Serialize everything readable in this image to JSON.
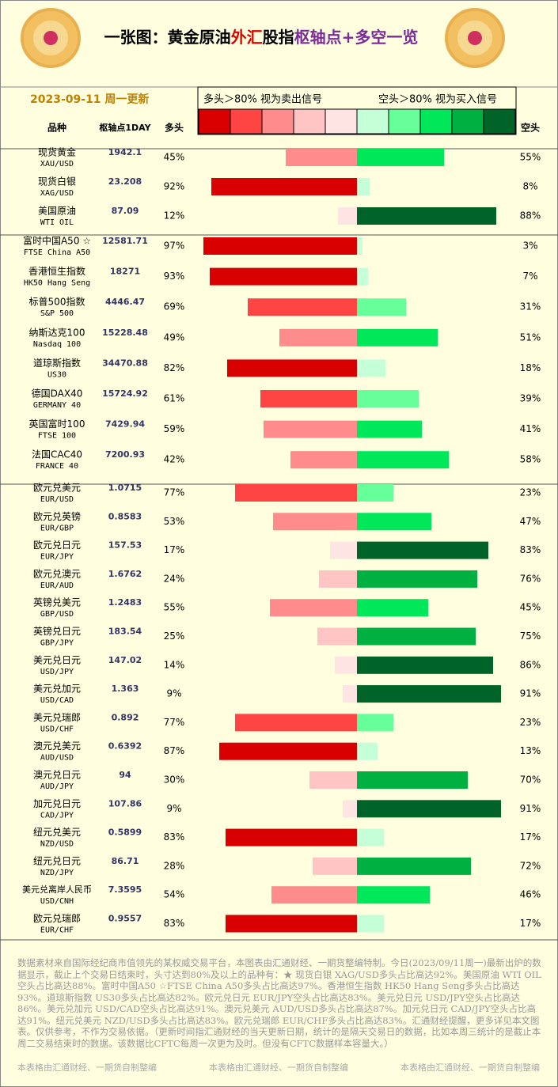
{
  "chart_data": {
    "type": "diverging-bar",
    "title_parts": [
      {
        "text": "一张图：黄金原油",
        "color": "#000000"
      },
      {
        "text": "外汇",
        "color": "#e00000"
      },
      {
        "text": "股指",
        "color": "#000000"
      },
      {
        "text": "枢轴点+多空一览",
        "color": "#7a2a9a"
      }
    ],
    "date": "2023-09-11 周一更新",
    "legend_texts": [
      "多头＞80% 视为卖出信号",
      "空头＞80% 视为买入信号"
    ],
    "legend_colors": [
      "#d80000",
      "#ff4444",
      "#ff8c8c",
      "#ffc4c4",
      "#ffe4e4",
      "#c4ffd8",
      "#66ff99",
      "#00e85a",
      "#00b040",
      "#006428"
    ],
    "headers": [
      "品种",
      "枢轴点1DAY",
      "多头",
      "空头"
    ],
    "categories": [
      "现货黄金",
      "现货白银",
      "美国原油",
      "富时中国A50 ☆",
      "香港恒生指数",
      "标普500指数",
      "纳斯达克100",
      "道琼斯指数",
      "德国DAX40",
      "英国富时100",
      "法国CAC40",
      "欧元兑美元",
      "欧元兑英镑",
      "欧元兑日元",
      "欧元兑澳元",
      "英镑兑美元",
      "英镑兑日元",
      "美元兑日元",
      "美元兑加元",
      "美元兑瑞郎",
      "澳元兑美元",
      "澳元兑日元",
      "加元兑日元",
      "纽元兑美元",
      "纽元兑日元",
      "美元兑离岸人民币",
      "欧元兑瑞郎"
    ],
    "codes": [
      "XAU/USD",
      "XAG/USD",
      "WTI OIL",
      "FTSE China A50",
      "HK50 Hang Seng",
      "S&P 500",
      "Nasdaq 100",
      "US30",
      "GERMANY 40",
      "FTSE 100",
      "FRANCE 40",
      "EUR/USD",
      "EUR/GBP",
      "EUR/JPY",
      "EUR/AUD",
      "GBP/USD",
      "GBP/JPY",
      "USD/JPY",
      "USD/CAD",
      "USD/CHF",
      "AUD/USD",
      "AUD/JPY",
      "CAD/JPY",
      "NZD/USD",
      "NZD/JPY",
      "USD/CNH",
      "EUR/CHF"
    ],
    "pivots": [
      1942.1,
      23.208,
      87.09,
      12581.71,
      18271,
      4446.47,
      15228.48,
      34470.88,
      15724.92,
      7429.94,
      7200.93,
      1.0715,
      0.8583,
      157.53,
      1.6762,
      1.2483,
      183.54,
      147.02,
      1.363,
      0.892,
      0.6392,
      94,
      107.86,
      0.5899,
      86.71,
      7.3595,
      0.9557
    ],
    "series": [
      {
        "name": "多头",
        "values": [
          45,
          92,
          12,
          97,
          93,
          69,
          49,
          82,
          61,
          59,
          42,
          77,
          53,
          17,
          24,
          55,
          25,
          14,
          9,
          77,
          87,
          30,
          9,
          83,
          28,
          54,
          83
        ],
        "value_labels": [
          "45%",
          "92%",
          "12%",
          "97%",
          "93%",
          "69%",
          "49%",
          "82%",
          "61%",
          "59%",
          "42%",
          "77%",
          "53%",
          "17%",
          "24%",
          "55%",
          "25%",
          "14%",
          "9%",
          "77%",
          "87%",
          "30%",
          "9%",
          "83%",
          "28%",
          "54%",
          "83%"
        ]
      },
      {
        "name": "空头",
        "values": [
          55,
          8,
          88,
          3,
          7,
          31,
          51,
          18,
          39,
          41,
          58,
          23,
          47,
          83,
          76,
          45,
          75,
          86,
          91,
          23,
          13,
          70,
          91,
          17,
          72,
          46,
          17
        ],
        "value_labels": [
          "55%",
          "8%",
          "88%",
          "3%",
          "7%",
          "31%",
          "51%",
          "18%",
          "39%",
          "41%",
          "58%",
          "23%",
          "47%",
          "83%",
          "76%",
          "45%",
          "75%",
          "86%",
          "91%",
          "23%",
          "13%",
          "70%",
          "91%",
          "17%",
          "72%",
          "46%",
          "17%"
        ]
      }
    ],
    "footer": "数据素材来自国际经纪商市值领先的某权威交易平台，本图表由汇通财经、一期货整编特制。今日(2023/09/11周一)最新出炉的数据显示，截止上个交易日结束时，头寸达到80%及以上的品种有：★ 现货白银 XAG/USD多头占比高达92%。美国原油 WTI OIL空头占比高达88%。富时中国A50 ☆FTSE China A50多头占比高达97%。香港恒生指数 HK50 Hang Seng多头占比高达93%。道琼斯指数 US30多头占比高达82%。欧元兑日元 EUR/JPY空头占比高达83%。美元兑日元 USD/JPY空头占比高达86%。美元兑加元 USD/CAD空头占比高达91%。澳元兑美元 AUD/USD多头占比高达87%。加元兑日元 CAD/JPY空头占比高达91%。纽元兑美元 NZD/USD多头占比高达83%。欧元兑瑞郎 EUR/CHF多头占比高达83%。汇通财经提醒，更多详见本文图表。仅供参考，不作为交易依据。（更新时间指汇通财经的当天更新日期，统计的是隔天交易日的数据，比如本周三统计的是截止本周二交易结束时的数据。该数据比CFTC每周一次更为及时。但没有CFTC数据样本容量大。）",
    "watermark": "本表格由汇通财经、一期货自制整编"
  }
}
